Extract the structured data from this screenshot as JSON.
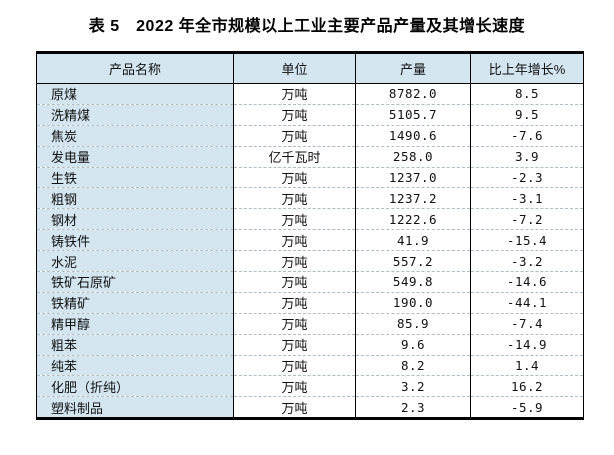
{
  "title": "表 5　2022 年全市规模以上工业主要产品产量及其增长速度",
  "colors": {
    "cell_fill_blue": "#d3e6f0",
    "border_black": "#000000",
    "row_separator_dashed": "#aebcc4",
    "text": "#000000",
    "page_background": "#ffffff"
  },
  "table": {
    "headers": [
      "产品名称",
      "单位",
      "产量",
      "比上年增长%"
    ],
    "rows": [
      [
        "原煤",
        "万吨",
        "8782.0",
        "8.5"
      ],
      [
        "洗精煤",
        "万吨",
        "5105.7",
        "9.5"
      ],
      [
        "焦炭",
        "万吨",
        "1490.6",
        "-7.6"
      ],
      [
        "发电量",
        "亿千瓦时",
        "258.0",
        "3.9"
      ],
      [
        "生铁",
        "万吨",
        "1237.0",
        "-2.3"
      ],
      [
        "粗钢",
        "万吨",
        "1237.2",
        "-3.1"
      ],
      [
        "钢材",
        "万吨",
        "1222.6",
        "-7.2"
      ],
      [
        "铸铁件",
        "万吨",
        "41.9",
        "-15.4"
      ],
      [
        "水泥",
        "万吨",
        "557.2",
        "-3.2"
      ],
      [
        "铁矿石原矿",
        "万吨",
        "549.8",
        "-14.6"
      ],
      [
        "铁精矿",
        "万吨",
        "190.0",
        "-44.1"
      ],
      [
        "精甲醇",
        "万吨",
        "85.9",
        "-7.4"
      ],
      [
        "粗苯",
        "万吨",
        "9.6",
        "-14.9"
      ],
      [
        "纯苯",
        "万吨",
        "8.2",
        "1.4"
      ],
      [
        "化肥（折纯）",
        "万吨",
        "3.2",
        "16.2"
      ],
      [
        "塑料制品",
        "万吨",
        "2.3",
        "-5.9"
      ]
    ]
  }
}
